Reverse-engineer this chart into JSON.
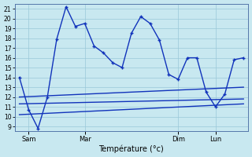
{
  "xlabel": "Température (°c)",
  "background_color": "#c8e8f0",
  "grid_color": "#99c8d8",
  "line_color": "#1133bb",
  "spine_color": "#5577aa",
  "ylim": [
    8.5,
    21.5
  ],
  "xlim": [
    -0.5,
    24.5
  ],
  "yticks": [
    9,
    10,
    11,
    12,
    13,
    14,
    15,
    16,
    17,
    18,
    19,
    20,
    21
  ],
  "x_tick_positions": [
    1,
    7,
    17,
    21
  ],
  "x_tick_labels": [
    "Sam",
    "Mar",
    "Dim",
    "Lun"
  ],
  "main_x": [
    0,
    1,
    2,
    3,
    4,
    5,
    6,
    7,
    8,
    9,
    10,
    11,
    12,
    13,
    14,
    15,
    16,
    17,
    18,
    19,
    20,
    21,
    22,
    23,
    24
  ],
  "main_y": [
    14.0,
    10.7,
    8.8,
    12.0,
    17.9,
    21.2,
    19.2,
    19.5,
    17.2,
    16.5,
    15.5,
    15.0,
    18.5,
    20.2,
    19.5,
    17.8,
    14.3,
    13.8,
    16.0,
    16.0,
    12.5,
    11.0,
    12.3,
    15.8,
    16.0
  ],
  "trend1_x": [
    0,
    24
  ],
  "trend1_y": [
    12.0,
    13.0
  ],
  "trend2_x": [
    0,
    24
  ],
  "trend2_y": [
    11.3,
    11.8
  ],
  "trend3_x": [
    0,
    24
  ],
  "trend3_y": [
    10.2,
    11.3
  ],
  "lw": 1.0,
  "ms": 3.0
}
